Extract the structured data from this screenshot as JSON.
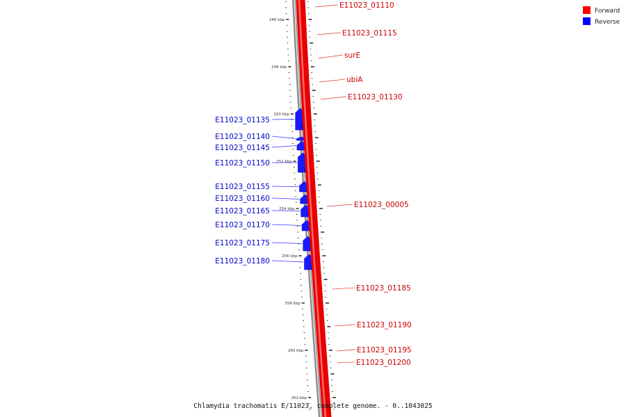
{
  "legend": {
    "items": [
      {
        "label": "Forward",
        "color": "#ff0000"
      },
      {
        "label": "Reverse",
        "color": "#0000ff"
      }
    ]
  },
  "caption": "Chlamydia trachomatis E/11023, complete genome. - 0..1043025",
  "axis": {
    "unit": "kbp",
    "major_ticks": [
      {
        "kbp": 246,
        "label": "246 kbp"
      },
      {
        "kbp": 248,
        "label": "248 kbp"
      },
      {
        "kbp": 250,
        "label": "250 kbp"
      },
      {
        "kbp": 252,
        "label": "252 kbp"
      },
      {
        "kbp": 254,
        "label": "254 kbp"
      },
      {
        "kbp": 256,
        "label": "256 kbp"
      },
      {
        "kbp": 258,
        "label": "258 kbp"
      },
      {
        "kbp": 260,
        "label": "260 kbp"
      },
      {
        "kbp": 262,
        "label": "262 kbp"
      }
    ]
  },
  "forward_genes": [
    {
      "name": "E11023_01110"
    },
    {
      "name": "E11023_01115"
    },
    {
      "name": "surE"
    },
    {
      "name": "ubiA"
    },
    {
      "name": "E11023_01130"
    },
    {
      "name": "E11023_00005"
    },
    {
      "name": "E11023_01185"
    },
    {
      "name": "E11023_01190"
    },
    {
      "name": "E11023_01195"
    },
    {
      "name": "E11023_01200"
    }
  ],
  "reverse_genes": [
    {
      "name": "E11023_01135"
    },
    {
      "name": "E11023_01140"
    },
    {
      "name": "E11023_01145"
    },
    {
      "name": "E11023_01150"
    },
    {
      "name": "E11023_01155"
    },
    {
      "name": "E11023_01160"
    },
    {
      "name": "E11023_01165"
    },
    {
      "name": "E11023_01170"
    },
    {
      "name": "E11023_01175"
    },
    {
      "name": "E11023_01180"
    }
  ]
}
